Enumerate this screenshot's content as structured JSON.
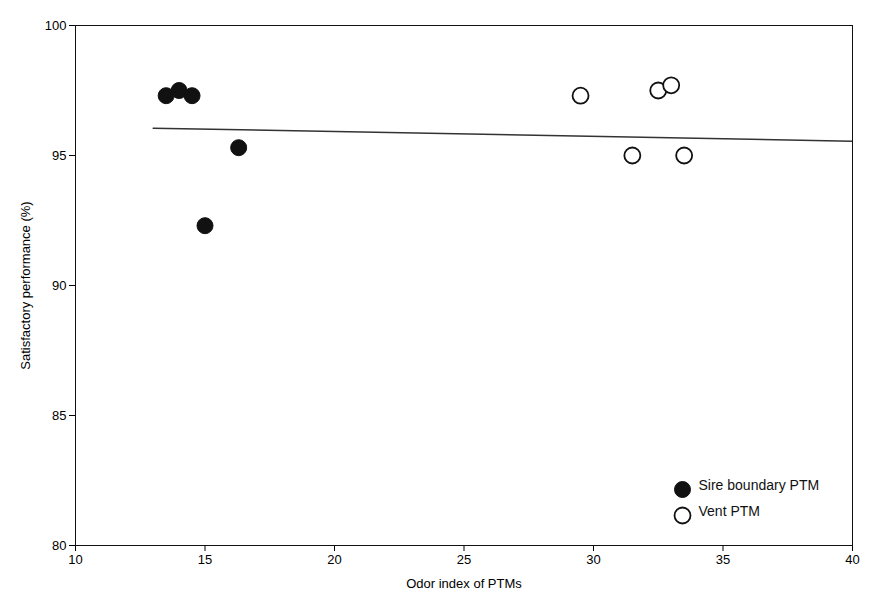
{
  "chart_data": {
    "type": "scatter",
    "xlabel": "Odor index of PTMs",
    "ylabel": "Satisfactory performance (%)",
    "xlim": [
      10,
      40
    ],
    "ylim": [
      80,
      100
    ],
    "xticks": [
      10,
      15,
      20,
      25,
      30,
      35,
      40
    ],
    "yticks": [
      80,
      85,
      90,
      95,
      100
    ],
    "grid": false,
    "legend": "lower right",
    "series": [
      {
        "type": "line",
        "color": "#333333",
        "line_style": "solid",
        "x": [
          13.0,
          40.0
        ],
        "values": [
          96.05,
          95.55
        ]
      },
      {
        "type": "scatter",
        "name": "Sire boundary PTM",
        "color": "#111111",
        "marker": "circle",
        "x": [
          13.5,
          14.0,
          14.5,
          15.0,
          16.3
        ],
        "values": [
          97.3,
          97.5,
          97.3,
          92.3,
          95.3
        ]
      },
      {
        "type": "scatter",
        "name": "Vent PTM",
        "color": "#111111",
        "marker": "open_circle",
        "x": [
          29.5,
          31.5,
          32.5,
          33.0,
          33.5
        ],
        "values": [
          97.3,
          95.0,
          97.5,
          97.7,
          95.0
        ]
      }
    ]
  }
}
